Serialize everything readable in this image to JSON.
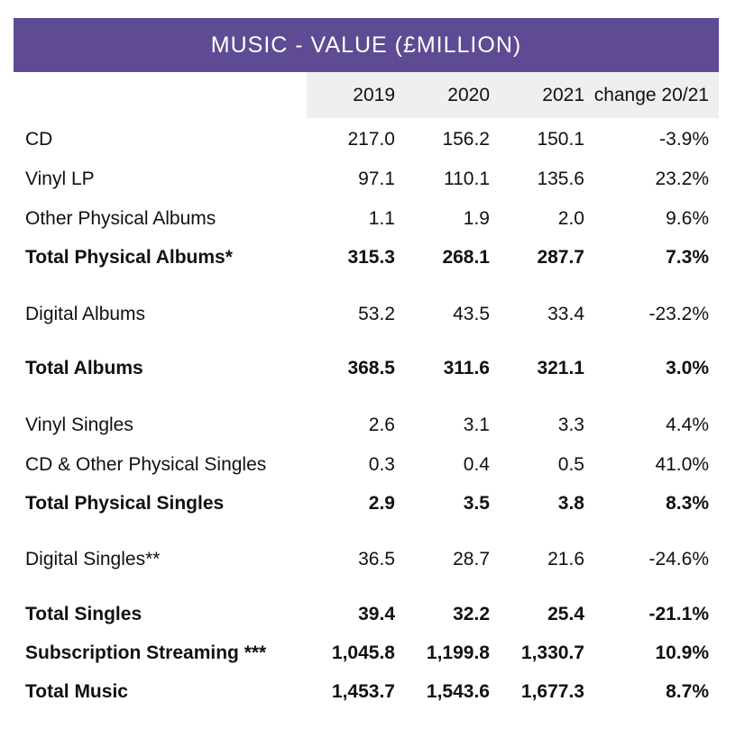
{
  "colors": {
    "title_bar": "#5e4b94",
    "header_strip": "#efefef"
  },
  "chart_data": {
    "type": "table",
    "title": "MUSIC - VALUE (£MILLION)",
    "columns": [
      "2019",
      "2020",
      "2021",
      "change 20/21"
    ],
    "rows": [
      {
        "label": "CD",
        "values": [
          "217.0",
          "156.2",
          "150.1",
          "-3.9%"
        ],
        "bold": false
      },
      {
        "label": "Vinyl LP",
        "values": [
          "97.1",
          "110.1",
          "135.6",
          "23.2%"
        ],
        "bold": false
      },
      {
        "label": "Other Physical Albums",
        "values": [
          "1.1",
          "1.9",
          "2.0",
          "9.6%"
        ],
        "bold": false
      },
      {
        "label": "Total Physical Albums*",
        "values": [
          "315.3",
          "268.1",
          "287.7",
          "7.3%"
        ],
        "bold": true
      },
      {
        "label": "Digital Albums",
        "values": [
          "53.2",
          "43.5",
          "33.4",
          "-23.2%"
        ],
        "bold": false
      },
      {
        "label": "Total Albums",
        "values": [
          "368.5",
          "311.6",
          "321.1",
          "3.0%"
        ],
        "bold": true
      },
      {
        "label": "Vinyl Singles",
        "values": [
          "2.6",
          "3.1",
          "3.3",
          "4.4%"
        ],
        "bold": false
      },
      {
        "label": "CD & Other Physical Singles",
        "values": [
          "0.3",
          "0.4",
          "0.5",
          "41.0%"
        ],
        "bold": false
      },
      {
        "label": "Total Physical Singles",
        "values": [
          "2.9",
          "3.5",
          "3.8",
          "8.3%"
        ],
        "bold": true
      },
      {
        "label": "Digital Singles**",
        "values": [
          "36.5",
          "28.7",
          "21.6",
          "-24.6%"
        ],
        "bold": false
      },
      {
        "label": "Total Singles",
        "values": [
          "39.4",
          "32.2",
          "25.4",
          "-21.1%"
        ],
        "bold": true
      },
      {
        "label": "Subscription Streaming ***",
        "values": [
          "1,045.8",
          "1,199.8",
          "1,330.7",
          "10.9%"
        ],
        "bold": true
      },
      {
        "label": "Total Music",
        "values": [
          "1,453.7",
          "1,543.6",
          "1,677.3",
          "8.7%"
        ],
        "bold": true
      }
    ]
  }
}
